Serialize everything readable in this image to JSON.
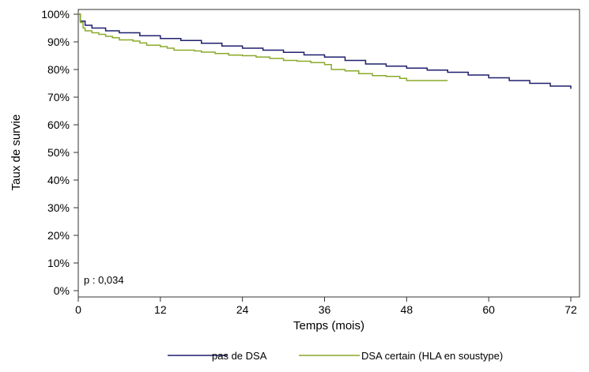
{
  "chart_data": {
    "type": "line",
    "step": true,
    "xlabel": "Temps (mois)",
    "ylabel": "Taux de survie",
    "xlim": [
      0,
      72
    ],
    "ylim": [
      0,
      100
    ],
    "xticks": [
      0,
      12,
      24,
      36,
      48,
      60,
      72
    ],
    "yticks": [
      "0%",
      "10%",
      "20%",
      "30%",
      "40%",
      "50%",
      "60%",
      "70%",
      "80%",
      "90%",
      "100%"
    ],
    "grid": false,
    "legend_position": "bottom",
    "annotation": "p : 0,034",
    "series": [
      {
        "name": "pas de DSA",
        "color": "#1f1f6e",
        "x": [
          0,
          0.3,
          1,
          2,
          4,
          6,
          9,
          12,
          15,
          18,
          21,
          24,
          27,
          30,
          33,
          36,
          39,
          42,
          45,
          48,
          51,
          54,
          57,
          60,
          63,
          66,
          69,
          72
        ],
        "y": [
          100,
          97.5,
          96,
          95,
          94,
          93.3,
          92.2,
          91.2,
          90.5,
          89.5,
          88.5,
          87.7,
          87,
          86.2,
          85.3,
          84.5,
          83.3,
          82,
          81.2,
          80.5,
          79.8,
          79,
          78,
          77,
          76,
          75,
          74,
          73
        ]
      },
      {
        "name": "DSA certain (HLA en soustype)",
        "color": "#8aaa2a",
        "x": [
          0,
          0.3,
          0.7,
          1,
          2,
          3,
          4,
          5,
          6,
          8,
          9,
          10,
          12,
          13,
          14,
          17,
          18,
          20,
          22,
          24,
          26,
          28,
          30,
          32,
          34,
          36,
          37,
          39,
          41,
          43,
          45,
          47,
          48,
          54
        ],
        "y": [
          100,
          97,
          95,
          94,
          93.3,
          92.7,
          92,
          91.5,
          90.7,
          90.3,
          89.6,
          88.8,
          88.3,
          87.7,
          87,
          86.7,
          86.3,
          85.8,
          85.2,
          85,
          84.5,
          84,
          83.3,
          83,
          82.5,
          81.8,
          80,
          79.5,
          78.5,
          77.8,
          77.5,
          76.8,
          76,
          76
        ]
      }
    ]
  }
}
